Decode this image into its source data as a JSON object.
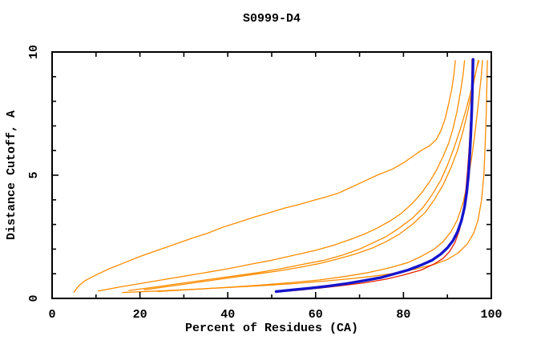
{
  "page": {
    "background": "#ffffff"
  },
  "chart_data": {
    "type": "line",
    "title": "S0999-D4",
    "xlabel": "Percent of Residues (CA)",
    "ylabel": "Distance Cutoff, A",
    "xlim": [
      0,
      100
    ],
    "ylim": [
      0,
      10
    ],
    "x_major_ticks": [
      0,
      20,
      40,
      60,
      80,
      100
    ],
    "x_minor_ticks": [
      10,
      30,
      50,
      70,
      90
    ],
    "y_major_ticks": [
      0,
      5,
      10
    ],
    "y_minor_ticks": [
      1,
      2,
      3,
      4,
      6,
      7,
      8,
      9
    ],
    "grid": false,
    "legend_position": "none",
    "axis_color": "#000000",
    "series": [
      {
        "name": "orange-model-a",
        "color": "#ff8c00",
        "width": 1.3,
        "points": [
          [
            5,
            0.25
          ],
          [
            6,
            0.5
          ],
          [
            7.5,
            0.72
          ],
          [
            10,
            0.95
          ],
          [
            13,
            1.2
          ],
          [
            16.5,
            1.45
          ],
          [
            20,
            1.7
          ],
          [
            24,
            1.95
          ],
          [
            28,
            2.2
          ],
          [
            32,
            2.45
          ],
          [
            35.5,
            2.65
          ],
          [
            39,
            2.9
          ],
          [
            43,
            3.12
          ],
          [
            46,
            3.3
          ],
          [
            49,
            3.45
          ],
          [
            53,
            3.67
          ],
          [
            56,
            3.8
          ],
          [
            59,
            3.95
          ],
          [
            62,
            4.1
          ],
          [
            65,
            4.26
          ],
          [
            68,
            4.5
          ],
          [
            71,
            4.75
          ],
          [
            74,
            5.0
          ],
          [
            77.5,
            5.25
          ],
          [
            80,
            5.5
          ],
          [
            82,
            5.75
          ],
          [
            84,
            6.0
          ],
          [
            86,
            6.2
          ],
          [
            87.5,
            6.45
          ],
          [
            88.5,
            6.8
          ],
          [
            89.5,
            7.3
          ],
          [
            90.3,
            7.9
          ],
          [
            91,
            8.5
          ],
          [
            91.5,
            9.1
          ],
          [
            91.8,
            9.65
          ]
        ]
      },
      {
        "name": "orange-model-b",
        "color": "#ff8c00",
        "width": 1.3,
        "points": [
          [
            10.5,
            0.3
          ],
          [
            15,
            0.45
          ],
          [
            20,
            0.6
          ],
          [
            25,
            0.75
          ],
          [
            30,
            0.9
          ],
          [
            35,
            1.05
          ],
          [
            40,
            1.2
          ],
          [
            45,
            1.38
          ],
          [
            50,
            1.55
          ],
          [
            55,
            1.75
          ],
          [
            60,
            1.95
          ],
          [
            64,
            2.15
          ],
          [
            68,
            2.4
          ],
          [
            71,
            2.6
          ],
          [
            74,
            2.85
          ],
          [
            77,
            3.15
          ],
          [
            79.5,
            3.45
          ],
          [
            82,
            3.85
          ],
          [
            84,
            4.25
          ],
          [
            86,
            4.75
          ],
          [
            87.5,
            5.2
          ],
          [
            89,
            5.75
          ],
          [
            90.3,
            6.3
          ],
          [
            91.3,
            6.9
          ],
          [
            92.2,
            7.6
          ],
          [
            93,
            8.4
          ],
          [
            93.6,
            9.1
          ],
          [
            93.9,
            9.65
          ]
        ]
      },
      {
        "name": "orange-model-c",
        "color": "#ff8c00",
        "width": 1.3,
        "points": [
          [
            17.5,
            0.32
          ],
          [
            23,
            0.45
          ],
          [
            29,
            0.6
          ],
          [
            35,
            0.75
          ],
          [
            41,
            0.9
          ],
          [
            47,
            1.05
          ],
          [
            52,
            1.2
          ],
          [
            57,
            1.38
          ],
          [
            62,
            1.55
          ],
          [
            66,
            1.75
          ],
          [
            70,
            2.0
          ],
          [
            73,
            2.25
          ],
          [
            76,
            2.5
          ],
          [
            79,
            2.85
          ],
          [
            82,
            3.25
          ],
          [
            84.5,
            3.7
          ],
          [
            86.5,
            4.2
          ],
          [
            88.5,
            4.8
          ],
          [
            90,
            5.4
          ],
          [
            91.5,
            6.1
          ],
          [
            93,
            6.9
          ],
          [
            94.3,
            7.7
          ],
          [
            95.5,
            8.5
          ],
          [
            96.5,
            9.2
          ],
          [
            97,
            9.65
          ]
        ]
      },
      {
        "name": "orange-model-d",
        "color": "#ff8c00",
        "width": 1.3,
        "points": [
          [
            21,
            0.35
          ],
          [
            27,
            0.5
          ],
          [
            33,
            0.65
          ],
          [
            39,
            0.8
          ],
          [
            45,
            0.95
          ],
          [
            51,
            1.1
          ],
          [
            56,
            1.25
          ],
          [
            61,
            1.42
          ],
          [
            65,
            1.6
          ],
          [
            69,
            1.8
          ],
          [
            73,
            2.05
          ],
          [
            76,
            2.3
          ],
          [
            79,
            2.6
          ],
          [
            82,
            3.0
          ],
          [
            85,
            3.5
          ],
          [
            87,
            4.0
          ],
          [
            89,
            4.6
          ],
          [
            90.8,
            5.3
          ],
          [
            92.3,
            6.0
          ],
          [
            93.6,
            6.8
          ],
          [
            94.8,
            7.7
          ],
          [
            95.8,
            8.6
          ],
          [
            96.6,
            9.3
          ],
          [
            97.2,
            9.65
          ]
        ]
      },
      {
        "name": "orange-model-e",
        "color": "#ff8c00",
        "width": 1.3,
        "points": [
          [
            24,
            0.28
          ],
          [
            32,
            0.36
          ],
          [
            40,
            0.45
          ],
          [
            48,
            0.55
          ],
          [
            55,
            0.65
          ],
          [
            61,
            0.75
          ],
          [
            67,
            0.9
          ],
          [
            72,
            1.05
          ],
          [
            77,
            1.25
          ],
          [
            81,
            1.45
          ],
          [
            84,
            1.7
          ],
          [
            87,
            2.0
          ],
          [
            89,
            2.3
          ],
          [
            90.8,
            2.7
          ],
          [
            92.3,
            3.2
          ],
          [
            93.6,
            3.9
          ],
          [
            94.7,
            4.8
          ],
          [
            95.6,
            5.8
          ],
          [
            96.4,
            6.9
          ],
          [
            97.1,
            8.0
          ],
          [
            97.7,
            9.0
          ],
          [
            98,
            9.65
          ]
        ]
      },
      {
        "name": "orange-model-f",
        "color": "#ff8c00",
        "width": 1.3,
        "points": [
          [
            16,
            0.24
          ],
          [
            24,
            0.3
          ],
          [
            32,
            0.37
          ],
          [
            40,
            0.44
          ],
          [
            48,
            0.52
          ],
          [
            55,
            0.6
          ],
          [
            62,
            0.7
          ],
          [
            68,
            0.8
          ],
          [
            74,
            0.92
          ],
          [
            79,
            1.05
          ],
          [
            83,
            1.2
          ],
          [
            87,
            1.38
          ],
          [
            90,
            1.58
          ],
          [
            92.5,
            1.85
          ],
          [
            94.5,
            2.2
          ],
          [
            96,
            2.65
          ],
          [
            97,
            3.2
          ],
          [
            97.8,
            4.0
          ],
          [
            98.3,
            5.0
          ],
          [
            98.6,
            6.2
          ],
          [
            98.85,
            7.5
          ],
          [
            99,
            8.7
          ],
          [
            99.1,
            9.65
          ]
        ]
      },
      {
        "name": "red-model",
        "color": "#e82200",
        "width": 1.3,
        "points": [
          [
            51,
            0.26
          ],
          [
            56,
            0.33
          ],
          [
            61,
            0.42
          ],
          [
            66,
            0.52
          ],
          [
            71,
            0.63
          ],
          [
            76,
            0.78
          ],
          [
            80,
            0.95
          ],
          [
            84,
            1.15
          ],
          [
            87,
            1.4
          ],
          [
            89,
            1.62
          ],
          [
            90.5,
            1.9
          ],
          [
            91.8,
            2.3
          ],
          [
            92.8,
            2.8
          ],
          [
            93.5,
            3.4
          ],
          [
            94.1,
            4.2
          ],
          [
            94.6,
            5.2
          ],
          [
            95,
            6.2
          ],
          [
            95.3,
            7.3
          ],
          [
            95.5,
            8.4
          ],
          [
            95.6,
            9.3
          ],
          [
            95.6,
            9.7
          ]
        ]
      },
      {
        "name": "blue-model",
        "color": "#1515cd",
        "width": 3.4,
        "points": [
          [
            51,
            0.28
          ],
          [
            55,
            0.35
          ],
          [
            59,
            0.42
          ],
          [
            63,
            0.5
          ],
          [
            67,
            0.6
          ],
          [
            71,
            0.72
          ],
          [
            75,
            0.85
          ],
          [
            78,
            1.0
          ],
          [
            81,
            1.15
          ],
          [
            84,
            1.35
          ],
          [
            86.5,
            1.55
          ],
          [
            88.5,
            1.8
          ],
          [
            90,
            2.05
          ],
          [
            91.3,
            2.35
          ],
          [
            92.3,
            2.7
          ],
          [
            93.2,
            3.15
          ],
          [
            93.9,
            3.7
          ],
          [
            94.4,
            4.3
          ],
          [
            94.8,
            5.0
          ],
          [
            95.1,
            5.8
          ],
          [
            95.35,
            6.7
          ],
          [
            95.55,
            7.6
          ],
          [
            95.7,
            8.5
          ],
          [
            95.8,
            9.3
          ],
          [
            95.85,
            9.7
          ]
        ]
      }
    ]
  }
}
